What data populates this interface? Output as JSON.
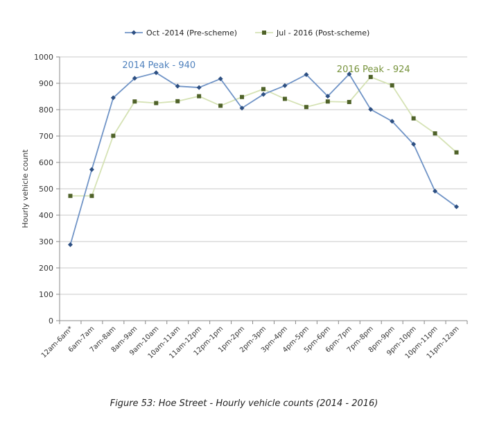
{
  "caption": "Figure 53: Hoe Street - Hourly vehicle counts (2014 - 2016)",
  "chart_data": {
    "type": "line",
    "title": "",
    "xlabel": "",
    "ylabel": "Hourly vehicle count",
    "ylim": [
      0,
      1000
    ],
    "yticks": [
      0,
      100,
      200,
      300,
      400,
      500,
      600,
      700,
      800,
      900,
      1000
    ],
    "grid": true,
    "legend_position": "top",
    "categories": [
      "12am-6am*",
      "6am-7am",
      "7am-8am",
      "8am-9am",
      "9am-10am",
      "10am-11am",
      "11am-12pm",
      "12pm-1pm",
      "1pm-2pm",
      "2pm-3pm",
      "3pm-4pm",
      "4pm-5pm",
      "5pm-6pm",
      "6pm-7pm",
      "7pm-8pm",
      "8pm-9pm",
      "9pm-10pm",
      "10pm-11pm",
      "11pm-12am"
    ],
    "series": [
      {
        "name": "Oct -2014 (Pre-scheme)",
        "color": "#6f93c6",
        "marker_color": "#2d4f82",
        "marker": "diamond",
        "values": [
          288,
          573,
          845,
          919,
          940,
          889,
          884,
          917,
          806,
          858,
          891,
          933,
          851,
          935,
          801,
          756,
          669,
          491,
          432
        ]
      },
      {
        "name": "Jul - 2016 (Post-scheme)",
        "color": "#d5e2b4",
        "marker_color": "#4f6229",
        "marker": "square",
        "values": [
          473,
          473,
          701,
          831,
          825,
          832,
          851,
          815,
          848,
          878,
          841,
          810,
          831,
          829,
          924,
          892,
          767,
          710,
          638
        ]
      }
    ],
    "annotations": [
      {
        "text": "2014 Peak - 940",
        "category": "9am-10am",
        "color": "#4f81bd"
      },
      {
        "text": "2016 Peak - 924",
        "category": "7pm-8pm",
        "color": "#77933c"
      }
    ]
  }
}
